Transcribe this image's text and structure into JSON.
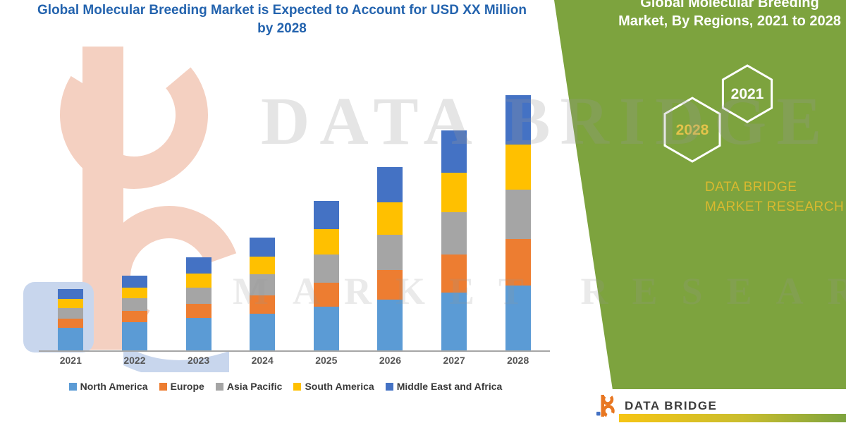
{
  "chart": {
    "title": "Global Molecular Breeding Market is Expected to Account for USD XX Million by 2028",
    "title_color": "#2363AE"
  },
  "chart_data": {
    "type": "bar",
    "stacked": true,
    "title": "Global Molecular Breeding Market is Expected to Account for USD XX Million by 2028",
    "xlabel": "",
    "ylabel": "",
    "grid": false,
    "legend_position": "bottom",
    "ylim": [
      0,
      370
    ],
    "categories": [
      "2021",
      "2022",
      "2023",
      "2024",
      "2025",
      "2026",
      "2027",
      "2028"
    ],
    "series": [
      {
        "name": "North America",
        "color": "#5B9BD5",
        "values": [
          32,
          40,
          46,
          52,
          62,
          72,
          82,
          92
        ]
      },
      {
        "name": "Europe",
        "color": "#ED7D31",
        "values": [
          13,
          16,
          20,
          26,
          34,
          42,
          54,
          66
        ]
      },
      {
        "name": "Asia Pacific",
        "color": "#A5A5A5",
        "values": [
          15,
          18,
          23,
          30,
          40,
          50,
          60,
          70
        ]
      },
      {
        "name": "South America",
        "color": "#FFC000",
        "values": [
          13,
          15,
          20,
          25,
          36,
          46,
          56,
          64
        ]
      },
      {
        "name": "Middle East and Africa",
        "color": "#4472C4",
        "values": [
          14,
          17,
          23,
          27,
          40,
          50,
          60,
          70
        ]
      }
    ]
  },
  "watermark": {
    "line1": "DATA BRIDGE",
    "line2": "MARKET RESEARCH"
  },
  "side_panel": {
    "background": "#7DA33E",
    "title": "Global Molecular Breeding Market, By Regions, 2021 to 2028",
    "hexagons": [
      {
        "label": "2021",
        "stroke": "#FFFFFF",
        "text_color": "#FFFFFF"
      },
      {
        "label": "2028",
        "stroke": "#FFFFFF",
        "text_color": "#E3C34B"
      }
    ],
    "brand": "DATA BRIDGE MARKET RESEARCH",
    "brand_color": "#D9B92F"
  },
  "footer": {
    "brand": "DATA BRIDGE"
  }
}
